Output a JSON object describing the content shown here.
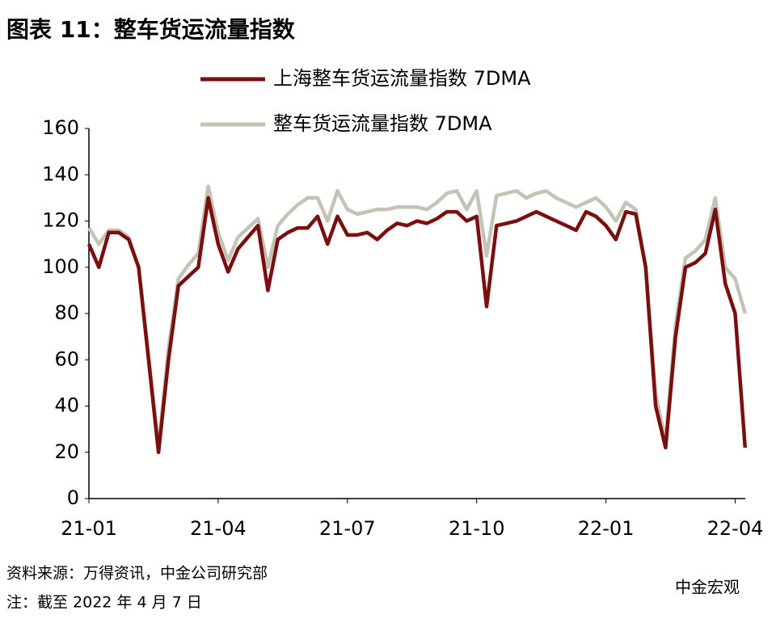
{
  "chart_data": {
    "type": "line",
    "title": "图表 11：整车货运流量指数",
    "categories": [
      "21-01",
      null,
      null,
      null,
      null,
      null,
      null,
      null,
      null,
      null,
      null,
      null,
      null,
      "21-04",
      null,
      null,
      null,
      null,
      null,
      null,
      null,
      null,
      null,
      null,
      null,
      null,
      "21-07",
      null,
      null,
      null,
      null,
      null,
      null,
      null,
      null,
      null,
      null,
      null,
      null,
      "21-10",
      null,
      null,
      null,
      null,
      null,
      null,
      null,
      null,
      null,
      null,
      null,
      null,
      "22-01",
      null,
      null,
      null,
      null,
      null,
      null,
      null,
      null,
      null,
      null,
      null,
      null,
      "22-04",
      null
    ],
    "series": [
      {
        "name": "上海整车货运流量指数 7DMA",
        "color": "#7a0f0f",
        "values": [
          110,
          100,
          115,
          115,
          112,
          100,
          60,
          20,
          60,
          92,
          96,
          100,
          130,
          110,
          98,
          108,
          113,
          118,
          90,
          112,
          115,
          117,
          117,
          122,
          110,
          122,
          114,
          114,
          115,
          112,
          116,
          119,
          118,
          120,
          119,
          121,
          124,
          124,
          120,
          122,
          83,
          118,
          119,
          120,
          122,
          124,
          122,
          120,
          118,
          116,
          124,
          122,
          118,
          112,
          124,
          123,
          100,
          40,
          22,
          70,
          100,
          102,
          106,
          125,
          93,
          80,
          22
        ]
      },
      {
        "name": "整车货运流量指数 7DMA",
        "color": "#c4c3b5",
        "values": [
          117,
          110,
          116,
          116,
          113,
          100,
          62,
          22,
          65,
          95,
          101,
          106,
          135,
          115,
          103,
          113,
          117,
          121,
          100,
          118,
          123,
          127,
          130,
          130,
          120,
          133,
          125,
          123,
          124,
          125,
          125,
          126,
          126,
          126,
          125,
          128,
          132,
          133,
          125,
          133,
          105,
          131,
          132,
          133,
          130,
          132,
          133,
          130,
          128,
          126,
          128,
          130,
          126,
          120,
          128,
          125,
          100,
          45,
          25,
          75,
          104,
          107,
          112,
          130,
          100,
          95,
          80
        ]
      }
    ],
    "ylim": [
      0,
      160
    ],
    "yticks": [
      0,
      20,
      40,
      60,
      80,
      100,
      120,
      140,
      160
    ],
    "source": "资料来源：万得资讯，中金公司研究部",
    "note": "注：截至 2022 年 4 月 7 日",
    "watermark": "中金宏观"
  }
}
